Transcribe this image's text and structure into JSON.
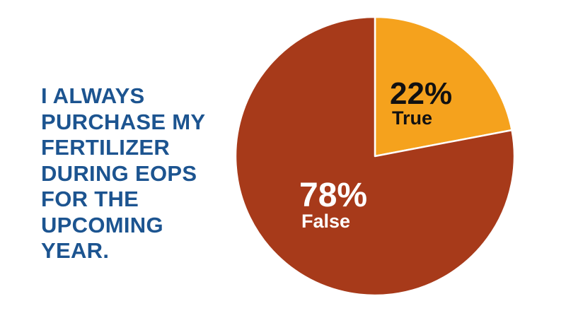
{
  "chart_data": {
    "type": "pie",
    "title_lines": [
      "I ALWAYS",
      "PURCHASE MY",
      "FERTILIZER",
      "DURING EOPS",
      "FOR THE",
      "UPCOMING",
      "YEAR."
    ],
    "slices": [
      {
        "label": "True",
        "value": 22,
        "value_label": "22%",
        "color": "#f5a21d",
        "text_color": "#111111"
      },
      {
        "label": "False",
        "value": 78,
        "value_label": "78%",
        "color": "#a73a1a",
        "text_color": "#ffffff"
      }
    ],
    "start": "top",
    "direction": "clockwise"
  }
}
